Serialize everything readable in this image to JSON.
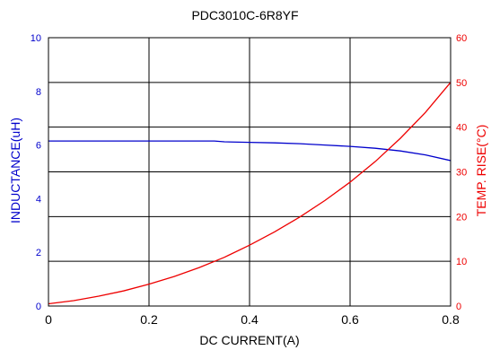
{
  "chart_data": {
    "type": "line",
    "title": "PDC3010C-6R8YF",
    "xlabel": "DC CURRENT(A)",
    "ylabel_left": "INDUCTANCE(uH)",
    "ylabel_right": "TEMP. RISE(°C)",
    "xlim": [
      0,
      0.8
    ],
    "ylim_left": [
      0,
      10
    ],
    "ylim_right": [
      0,
      60
    ],
    "x_ticks": [
      "0",
      "0.2",
      "0.4",
      "0.6",
      "0.8"
    ],
    "y_left_ticks": [
      "0",
      "2",
      "4",
      "6",
      "8",
      "10"
    ],
    "y_right_ticks": [
      "0",
      "10",
      "20",
      "30",
      "40",
      "50",
      "60"
    ],
    "grid": true,
    "colors": {
      "inductance": "#0000cc",
      "temp_rise": "#ee0000",
      "grid": "#000000"
    },
    "series": [
      {
        "axis": "left",
        "color": "#0000cc",
        "x": [
          0,
          0.05,
          0.1,
          0.15,
          0.2,
          0.25,
          0.3,
          0.33,
          0.35,
          0.4,
          0.45,
          0.5,
          0.55,
          0.6,
          0.65,
          0.7,
          0.75,
          0.8
        ],
        "values": [
          6.15,
          6.15,
          6.15,
          6.15,
          6.15,
          6.15,
          6.15,
          6.15,
          6.12,
          6.1,
          6.08,
          6.05,
          6.0,
          5.95,
          5.88,
          5.78,
          5.63,
          5.42
        ]
      },
      {
        "axis": "right",
        "color": "#ee0000",
        "x": [
          0,
          0.05,
          0.1,
          0.15,
          0.2,
          0.25,
          0.3,
          0.35,
          0.4,
          0.45,
          0.5,
          0.55,
          0.6,
          0.65,
          0.7,
          0.75,
          0.8
        ],
        "values": [
          0.5,
          1.2,
          2.2,
          3.4,
          4.9,
          6.6,
          8.6,
          10.9,
          13.6,
          16.6,
          19.9,
          23.6,
          27.7,
          32.3,
          37.5,
          43.3,
          50.0
        ]
      }
    ]
  }
}
